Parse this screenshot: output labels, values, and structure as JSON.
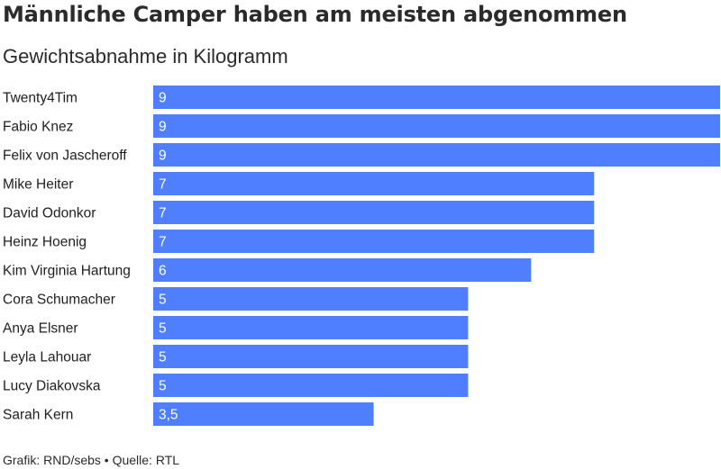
{
  "title": "Männliche Camper haben am meisten abgenommen",
  "subtitle": "Gewichtsabnahme in Kilogramm",
  "footer": "Grafik: RND/sebs • Quelle: RTL",
  "colors": {
    "bar": "#4F7FFF"
  },
  "chart_data": {
    "type": "bar",
    "orientation": "horizontal",
    "title": "Männliche Camper haben am meisten abgenommen",
    "subtitle": "Gewichtsabnahme in Kilogramm",
    "categories": [
      "Twenty4Tim",
      "Fabio Knez",
      "Felix von Jascheroff",
      "Mike Heiter",
      "David Odonkor",
      "Heinz Hoenig",
      "Kim Virginia Hartung",
      "Cora Schumacher",
      "Anya Elsner",
      "Leyla Lahouar",
      "Lucy Diakovska",
      "Sarah Kern"
    ],
    "values": [
      9,
      9,
      9,
      7,
      7,
      7,
      6,
      5,
      5,
      5,
      5,
      3.5
    ],
    "value_labels": [
      "9",
      "9",
      "9",
      "7",
      "7",
      "7",
      "6",
      "5",
      "5",
      "5",
      "5",
      "3,5"
    ],
    "xlim": [
      0,
      9
    ],
    "grid": false,
    "legend": "none"
  }
}
